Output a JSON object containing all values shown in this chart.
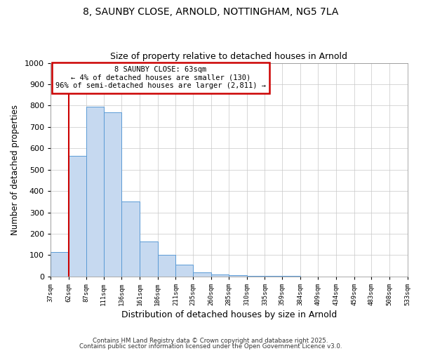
{
  "title": "8, SAUNBY CLOSE, ARNOLD, NOTTINGHAM, NG5 7LA",
  "subtitle": "Size of property relative to detached houses in Arnold",
  "xlabel": "Distribution of detached houses by size in Arnold",
  "ylabel": "Number of detached properties",
  "bar_values": [
    115,
    565,
    795,
    770,
    350,
    165,
    100,
    55,
    18,
    10,
    5,
    2,
    1,
    1,
    0,
    0,
    0,
    0,
    0,
    0
  ],
  "bin_edges": [
    37,
    62,
    87,
    111,
    136,
    161,
    186,
    211,
    235,
    260,
    285,
    310,
    335,
    359,
    384,
    409,
    434,
    459,
    483,
    508,
    533
  ],
  "bin_labels": [
    "37sqm",
    "62sqm",
    "87sqm",
    "111sqm",
    "136sqm",
    "161sqm",
    "186sqm",
    "211sqm",
    "235sqm",
    "260sqm",
    "285sqm",
    "310sqm",
    "335sqm",
    "359sqm",
    "384sqm",
    "409sqm",
    "434sqm",
    "459sqm",
    "483sqm",
    "508sqm",
    "533sqm"
  ],
  "bar_color": "#c6d9f0",
  "bar_edge_color": "#5b9bd5",
  "vline_x": 62,
  "vline_color": "#cc0000",
  "annotation_line1": "8 SAUNBY CLOSE: 63sqm",
  "annotation_line2": "← 4% of detached houses are smaller (130)",
  "annotation_line3": "96% of semi-detached houses are larger (2,811) →",
  "annotation_box_color": "#ffffff",
  "annotation_box_edge": "#cc0000",
  "ylim": [
    0,
    1000
  ],
  "yticks": [
    0,
    100,
    200,
    300,
    400,
    500,
    600,
    700,
    800,
    900,
    1000
  ],
  "background_color": "#ffffff",
  "grid_color": "#c8c8c8",
  "footnote1": "Contains HM Land Registry data © Crown copyright and database right 2025.",
  "footnote2": "Contains public sector information licensed under the Open Government Licence v3.0."
}
